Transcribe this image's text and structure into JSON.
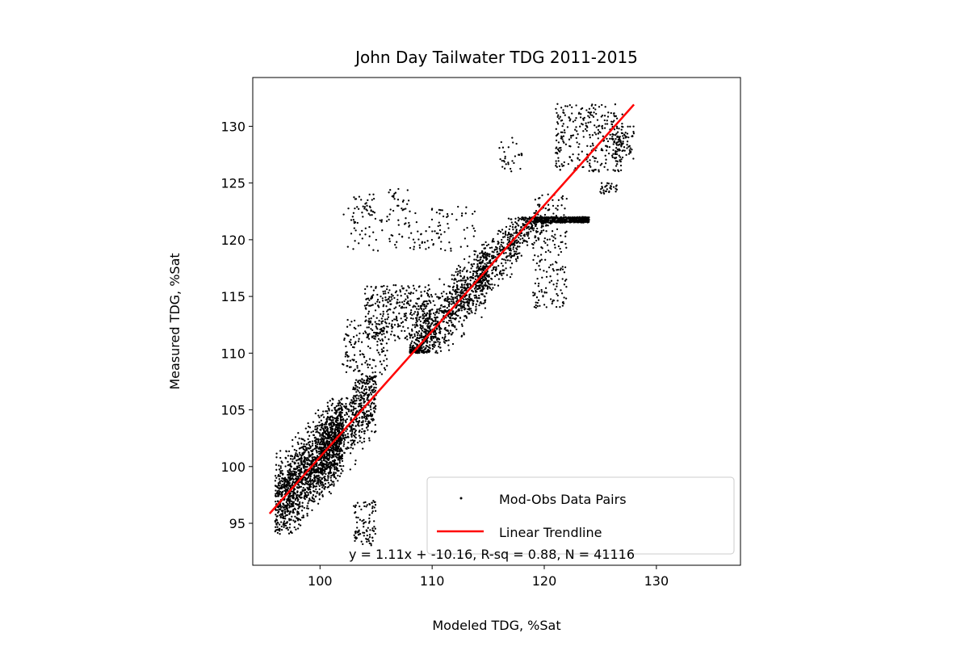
{
  "chart_data": {
    "type": "scatter",
    "title": "John Day Tailwater TDG 2011-2015",
    "xlabel": "Modeled TDG, %Sat",
    "ylabel": "Measured TDG, %Sat",
    "xlim": [
      94,
      137.5
    ],
    "ylim": [
      91.3,
      134.3
    ],
    "xticks": [
      100,
      110,
      120,
      130
    ],
    "yticks": [
      95,
      100,
      105,
      110,
      115,
      120,
      125,
      130
    ],
    "grid": false,
    "legend_position": "lower-right",
    "series": [
      {
        "name": "Mod-Obs Data Pairs",
        "kind": "scatter",
        "color": "#000000",
        "clusters": [
          {
            "x": [
              96,
              102
            ],
            "y": [
              94,
              106
            ],
            "trend": true,
            "n": 1600
          },
          {
            "x": [
              100,
              105
            ],
            "y": [
              97,
              108
            ],
            "trend": true,
            "n": 700
          },
          {
            "x": [
              104,
              110
            ],
            "y": [
              111,
              116
            ],
            "n": 350
          },
          {
            "x": [
              108,
              115
            ],
            "y": [
              110,
              120
            ],
            "trend": true,
            "n": 900
          },
          {
            "x": [
              114,
              124
            ],
            "y": [
              114,
              122
            ],
            "trend": true,
            "n": 900
          },
          {
            "x": [
              119,
              122
            ],
            "y": [
              114,
              124
            ],
            "n": 200
          },
          {
            "x": [
              121,
              127
            ],
            "y": [
              126,
              132
            ],
            "n": 300
          },
          {
            "x": [
              126,
              128
            ],
            "y": [
              127,
              130
            ],
            "n": 80
          },
          {
            "x": [
              103,
              105
            ],
            "y": [
              93,
              97
            ],
            "n": 90
          },
          {
            "x": [
              102,
              114
            ],
            "y": [
              119,
              123
            ],
            "n": 150
          },
          {
            "x": [
              102,
              106
            ],
            "y": [
              108,
              113
            ],
            "n": 140
          },
          {
            "x": [
              116,
              118
            ],
            "y": [
              126,
              129
            ],
            "n": 30
          },
          {
            "x": [
              125,
              126.5
            ],
            "y": [
              124,
              125
            ],
            "n": 30
          },
          {
            "x": [
              103,
              105
            ],
            "y": [
              122,
              124
            ],
            "n": 25
          },
          {
            "x": [
              106,
              108
            ],
            "y": [
              123,
              124.5
            ],
            "n": 15
          }
        ]
      },
      {
        "name": "Linear Trendline",
        "kind": "line",
        "color": "#ff0000",
        "x": [
          95.5,
          128
        ],
        "y": [
          95.85,
          131.92
        ]
      }
    ],
    "annotation": "y = 1.11x + -10.16, R-sq = 0.88, N = 41116"
  }
}
